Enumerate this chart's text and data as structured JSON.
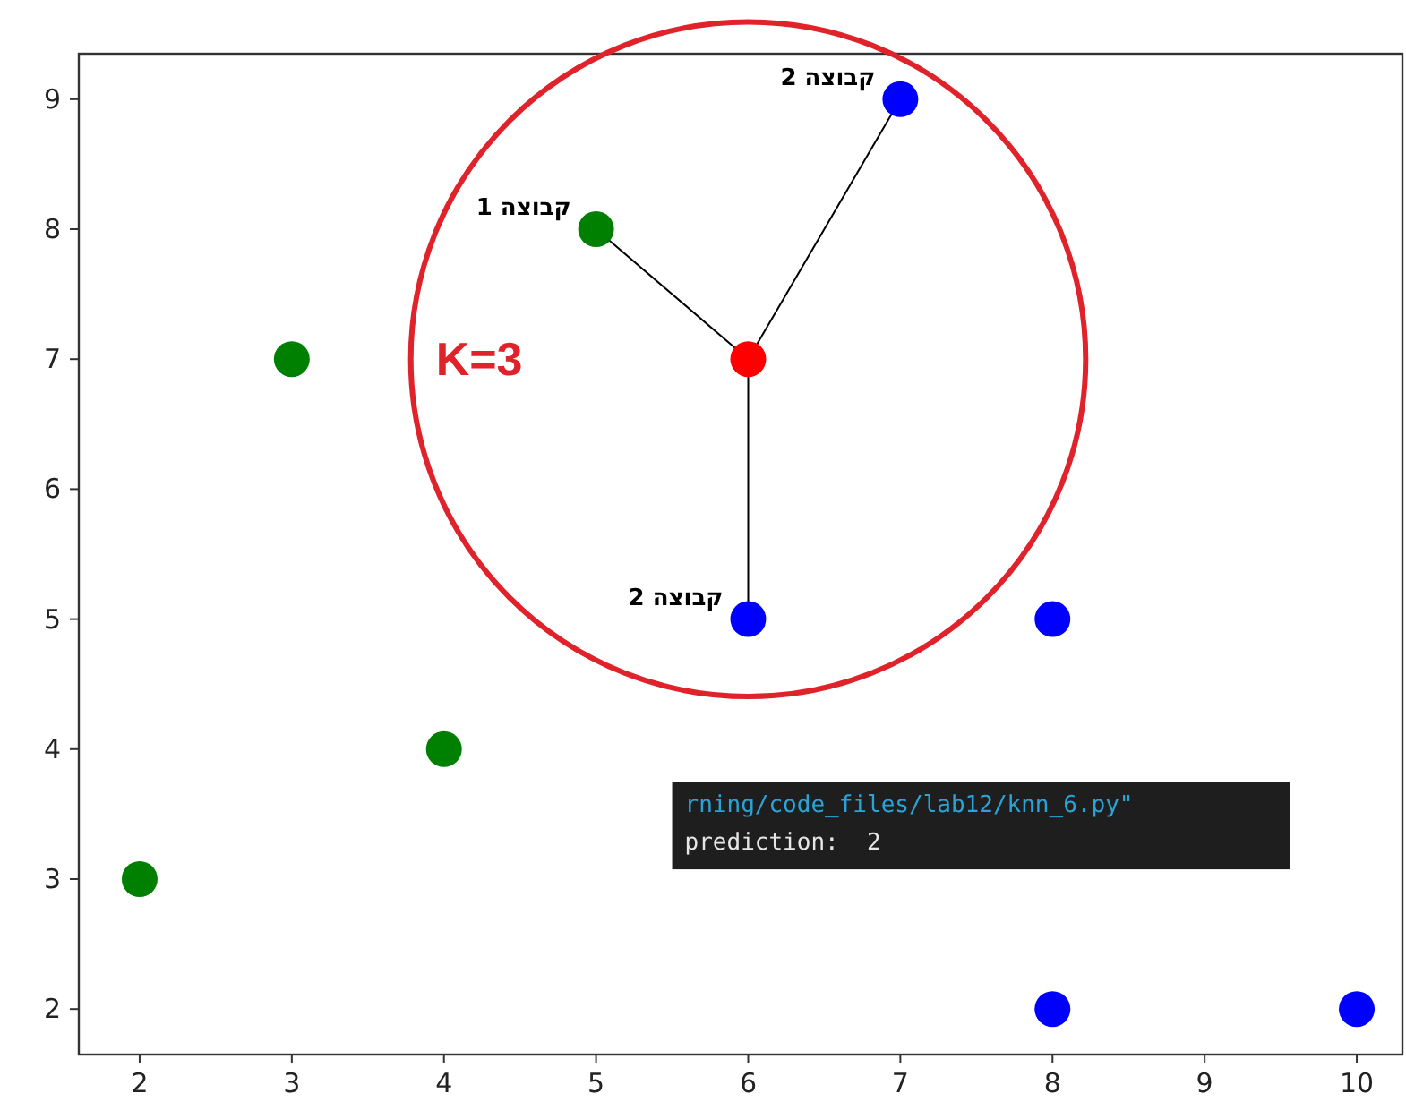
{
  "chart_data": {
    "type": "scatter",
    "xlim": [
      1.6,
      10.3
    ],
    "ylim": [
      1.65,
      9.35
    ],
    "xticks": [
      2,
      3,
      4,
      5,
      6,
      7,
      8,
      9,
      10
    ],
    "yticks": [
      2,
      3,
      4,
      5,
      6,
      7,
      8,
      9
    ],
    "grid": false,
    "marker": "circle",
    "series": [
      {
        "color": "#008000",
        "x": [
          2,
          3,
          4,
          5
        ],
        "values": [
          3,
          7,
          4,
          8
        ]
      },
      {
        "color": "#0000ff",
        "x": [
          6,
          7,
          8,
          8,
          10
        ],
        "values": [
          5,
          9,
          5,
          2,
          2
        ]
      },
      {
        "color": "#ff0000",
        "x": [
          6
        ],
        "values": [
          7
        ]
      }
    ],
    "annotations": [
      "K=3",
      "rning/code_files/lab12/knn_6.py\"",
      "prediction:  2",
      {
        "text": "קבוצה 1",
        "x": 5,
        "y": 8
      },
      {
        "text": "קבוצה 2",
        "x": 7,
        "y": 9
      },
      {
        "text": "קבוצה 2",
        "x": 6,
        "y": 5
      }
    ]
  }
}
